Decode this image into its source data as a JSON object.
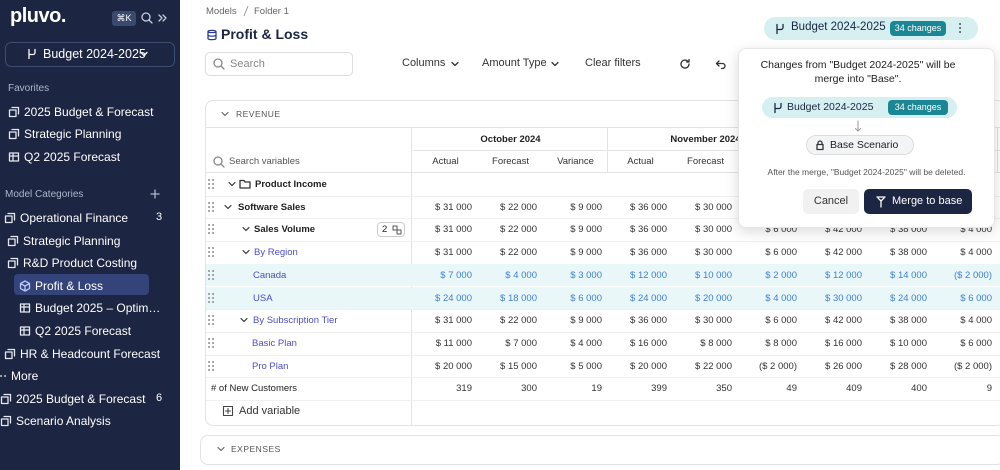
{
  "sidebar": {
    "logo": "pluvo.",
    "shortcut": "⌘K",
    "scenario": "Budget 2024-2025",
    "favorites_title": "Favorites",
    "favorites": [
      "2025 Budget & Forecast",
      "Strategic Planning",
      "Q2 2025 Forecast"
    ],
    "categories_title": "Model Categories",
    "categories": [
      {
        "label": "Operational Finance",
        "count": 3
      },
      {
        "label": "Strategic Planning"
      },
      {
        "label": "R&D Product Costing"
      },
      {
        "label": "Profit & Loss"
      },
      {
        "label": "Budget 2025 – Optim…"
      },
      {
        "label": "Q2 2025 Forecast"
      },
      {
        "label": "HR & Headcount Forecast"
      },
      {
        "label": "More"
      },
      {
        "label": "2025 Budget & Forecast",
        "count": 6
      },
      {
        "label": "Scenario Analysis"
      }
    ]
  },
  "main": {
    "breadcrumb": [
      "Models",
      "Folder 1"
    ],
    "title": "Profit & Loss",
    "search_placeholder": "Search",
    "toolbar": [
      "Columns",
      "Amount Type",
      "Clear filters"
    ],
    "scenario_badge": {
      "label": "Budget 2024-2025",
      "changes": "34 changes"
    }
  },
  "table": {
    "section": "REVENUE",
    "search_placeholder": "Search variables",
    "column_groups": [
      "October 2024",
      "November 2024",
      null
    ],
    "columns": [
      "Actual",
      "Forecast",
      "Variance",
      "Actual",
      "Forecast",
      null,
      null,
      null,
      null
    ],
    "rows": [
      {
        "label": "Product Income"
      },
      {
        "label": "Software Sales",
        "values": [
          "$ 31 000",
          "$ 22 000",
          "$ 9 000",
          "$ 36 000",
          "$ 30 000",
          null,
          null,
          null,
          null
        ]
      },
      {
        "label": "Sales Volume",
        "badge": 2,
        "values": [
          "$ 31 000",
          "$ 22 000",
          "$ 9 000",
          "$ 36 000",
          "$ 30 000",
          "$ 6 000",
          "$ 42 000",
          "$ 38 000",
          "$ 4 000"
        ]
      },
      {
        "label": "By Region",
        "values": [
          "$ 31 000",
          "$ 22 000",
          "$ 9 000",
          "$ 36 000",
          "$ 30 000",
          "$ 6 000",
          "$ 42 000",
          "$ 38 000",
          "$ 4 000"
        ]
      },
      {
        "label": "Canada",
        "values": [
          "$ 7 000",
          "$ 4 000",
          "$ 3 000",
          "$ 12 000",
          "$ 10 000",
          "$ 2 000",
          "$ 12 000",
          "$ 14 000",
          "($ 2 000)"
        ]
      },
      {
        "label": "USA",
        "values": [
          "$ 24 000",
          "$ 18 000",
          "$ 6 000",
          "$ 24 000",
          "$ 20 000",
          "$ 4 000",
          "$ 30 000",
          "$ 24 000",
          "$ 6 000"
        ]
      },
      {
        "label": "By Subscription Tier",
        "values": [
          "$ 31 000",
          "$ 22 000",
          "$ 9 000",
          "$ 36 000",
          "$ 30 000",
          "$ 6 000",
          "$ 42 000",
          "$ 38 000",
          "$ 4 000"
        ]
      },
      {
        "label": "Basic Plan",
        "values": [
          "$ 11 000",
          "$ 7 000",
          "$ 4 000",
          "$ 16 000",
          "$ 8 000",
          "$ 8 000",
          "$ 16 000",
          "$ 10 000",
          "$ 6 000"
        ]
      },
      {
        "label": "Pro Plan",
        "values": [
          "$ 20 000",
          "$ 15 000",
          "$ 5 000",
          "$ 20 000",
          "$ 22 000",
          "($ 2 000)",
          "$ 26 000",
          "$ 28 000",
          "($ 2 000)"
        ]
      },
      {
        "label": "# of New Customers",
        "values": [
          "319",
          "300",
          "19",
          "399",
          "350",
          "49",
          "409",
          "400",
          "9"
        ]
      }
    ],
    "add_variable": "Add variable",
    "next_section": "EXPENSES"
  },
  "merge_popup": {
    "message": "Changes from \"Budget 2024-2025\" will be merge into \"Base\".",
    "source": "Budget 2024-2025",
    "changes": "34 changes",
    "target": "Base Scenario",
    "note": "After the merge, \"Budget 2024-2025\" will be deleted.",
    "cancel": "Cancel",
    "confirm": "Merge to base"
  }
}
